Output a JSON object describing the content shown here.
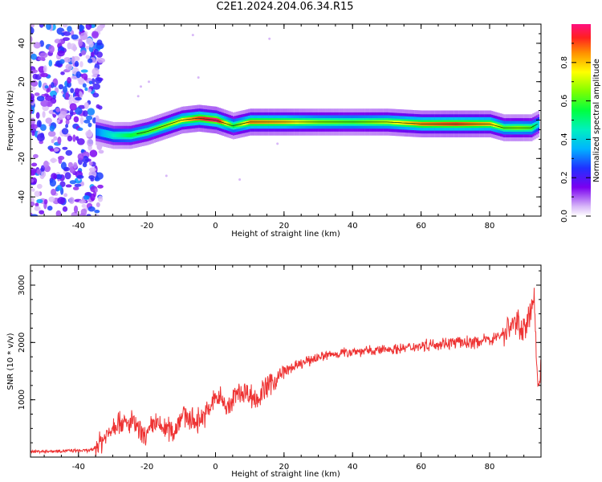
{
  "title": "C2E1.2024.204.06.34.R15",
  "colors": {
    "line": "#ee3333",
    "frame": "#000000"
  },
  "top_plot": {
    "ylabel": "Frequency (Hz)",
    "xlabel": "Height of straight line (km)",
    "colorbar_label": "Normalized spectral amplitude"
  },
  "bottom_plot": {
    "ylabel": "SNR (10 * v/v)",
    "xlabel": "Height of straight line (km)"
  },
  "chart_data": [
    {
      "type": "heatmap",
      "title": "",
      "xlabel": "Height of straight line (km)",
      "ylabel": "Frequency (Hz)",
      "xlim": [
        -54,
        95
      ],
      "ylim": [
        -50,
        50
      ],
      "xticks": [
        -40,
        -20,
        0,
        20,
        40,
        60,
        80
      ],
      "yticks": [
        -40,
        -20,
        0,
        20,
        40
      ],
      "colorscale": "rainbow",
      "colorbar": {
        "label": "Normalized spectral amplitude",
        "range": [
          0,
          1
        ],
        "ticks": [
          0.0,
          0.2,
          0.4,
          0.6,
          0.8
        ]
      },
      "ridge": {
        "x": [
          -35,
          -30,
          -25,
          -20,
          -15,
          -10,
          -5,
          0,
          5,
          10,
          20,
          30,
          40,
          50,
          60,
          70,
          80,
          84,
          88,
          92,
          94
        ],
        "frequency": [
          -6,
          -8,
          -8,
          -6,
          -3,
          0,
          1,
          0,
          -3,
          -1,
          -1,
          -1,
          -1,
          -1,
          -2,
          -2,
          -2,
          -4,
          -4,
          -4,
          -2
        ],
        "amplitude": [
          0.3,
          0.45,
          0.55,
          0.6,
          0.65,
          0.75,
          0.9,
          1.0,
          0.55,
          0.85,
          0.8,
          0.65,
          0.6,
          0.7,
          0.85,
          0.9,
          0.8,
          0.6,
          0.65,
          0.6,
          0.4
        ]
      },
      "noise_region": {
        "x_range": [
          -54,
          -35
        ],
        "frequency_range": [
          -50,
          50
        ],
        "amplitude_range": [
          0.0,
          0.3
        ]
      }
    },
    {
      "type": "line",
      "title": "",
      "xlabel": "Height of straight line (km)",
      "ylabel": "SNR (10 * v/v)",
      "xlim": [
        -54,
        95
      ],
      "ylim": [
        0,
        3350
      ],
      "xticks": [
        -40,
        -20,
        0,
        20,
        40,
        60,
        80
      ],
      "yticks": [
        1000,
        2000,
        3000
      ],
      "series": [
        {
          "color": "#ee3333",
          "x": [
            -54,
            -50,
            -45,
            -40,
            -36,
            -34,
            -32,
            -30,
            -28,
            -26,
            -24,
            -22,
            -20,
            -18,
            -16,
            -14,
            -12,
            -10,
            -8,
            -6,
            -4,
            -2,
            0,
            2,
            4,
            6,
            8,
            10,
            12,
            14,
            16,
            18,
            20,
            22,
            24,
            26,
            28,
            30,
            35,
            40,
            45,
            50,
            55,
            60,
            65,
            70,
            75,
            80,
            84,
            86,
            88,
            90,
            92,
            93,
            94,
            95
          ],
          "y": [
            100,
            100,
            110,
            110,
            120,
            250,
            350,
            550,
            650,
            550,
            620,
            400,
            350,
            600,
            520,
            500,
            450,
            750,
            700,
            600,
            700,
            800,
            1050,
            1000,
            850,
            1100,
            1150,
            1100,
            1000,
            1150,
            1300,
            1350,
            1500,
            1550,
            1600,
            1650,
            1700,
            1750,
            1800,
            1850,
            1850,
            1880,
            1900,
            1950,
            1980,
            2000,
            2000,
            2050,
            2150,
            2300,
            2350,
            2250,
            2450,
            2900,
            1200,
            1500
          ]
        }
      ]
    }
  ]
}
